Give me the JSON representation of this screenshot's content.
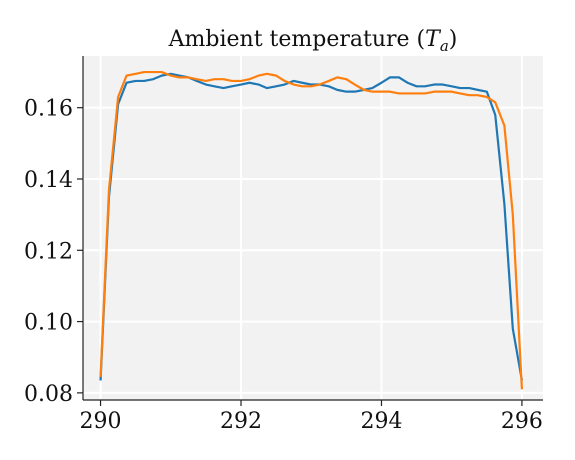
{
  "chart_data": {
    "type": "line",
    "title": "Ambient temperature (Tₐ)",
    "xlabel": "",
    "ylabel": "",
    "xlim": [
      289.75,
      296.3
    ],
    "ylim": [
      0.078,
      0.1745
    ],
    "xticks": [
      290,
      292,
      294,
      296
    ],
    "yticks": [
      0.08,
      0.1,
      0.12,
      0.14,
      0.16
    ],
    "ytick_labels": [
      "0.08",
      "0.10",
      "0.12",
      "0.14",
      "0.16"
    ],
    "grid": true,
    "background": "#f2f2f2",
    "series": [
      {
        "color": "#1f77b4",
        "x": [
          290.0,
          290.12,
          290.25,
          290.37,
          290.5,
          290.62,
          290.75,
          290.87,
          291.0,
          291.12,
          291.25,
          291.37,
          291.5,
          291.62,
          291.75,
          291.87,
          292.0,
          292.12,
          292.25,
          292.37,
          292.5,
          292.62,
          292.75,
          292.87,
          293.0,
          293.12,
          293.25,
          293.37,
          293.5,
          293.62,
          293.75,
          293.87,
          294.0,
          294.12,
          294.25,
          294.37,
          294.5,
          294.62,
          294.75,
          294.87,
          295.0,
          295.12,
          295.25,
          295.37,
          295.5,
          295.62,
          295.75,
          295.87,
          296.0
        ],
        "y": [
          0.0835,
          0.135,
          0.161,
          0.167,
          0.1675,
          0.1675,
          0.168,
          0.169,
          0.1695,
          0.169,
          0.1685,
          0.1675,
          0.1665,
          0.166,
          0.1655,
          0.166,
          0.1665,
          0.167,
          0.1665,
          0.1655,
          0.166,
          0.1665,
          0.1675,
          0.167,
          0.1665,
          0.1665,
          0.166,
          0.165,
          0.1645,
          0.1645,
          0.165,
          0.1655,
          0.167,
          0.1685,
          0.1685,
          0.167,
          0.166,
          0.166,
          0.1665,
          0.1665,
          0.166,
          0.1655,
          0.1655,
          0.165,
          0.1645,
          0.158,
          0.133,
          0.098,
          0.0835
        ]
      },
      {
        "color": "#ff7f0e",
        "x": [
          290.0,
          290.12,
          290.25,
          290.37,
          290.5,
          290.62,
          290.75,
          290.87,
          291.0,
          291.12,
          291.25,
          291.37,
          291.5,
          291.62,
          291.75,
          291.87,
          292.0,
          292.12,
          292.25,
          292.37,
          292.5,
          292.62,
          292.75,
          292.87,
          293.0,
          293.12,
          293.25,
          293.37,
          293.5,
          293.62,
          293.75,
          293.87,
          294.0,
          294.12,
          294.25,
          294.37,
          294.5,
          294.62,
          294.75,
          294.87,
          295.0,
          295.12,
          295.25,
          295.37,
          295.5,
          295.62,
          295.75,
          295.87,
          296.0
        ],
        "y": [
          0.0845,
          0.137,
          0.163,
          0.169,
          0.1695,
          0.17,
          0.17,
          0.17,
          0.169,
          0.1685,
          0.1685,
          0.168,
          0.1675,
          0.168,
          0.168,
          0.1675,
          0.1675,
          0.168,
          0.169,
          0.1695,
          0.169,
          0.1675,
          0.1665,
          0.166,
          0.166,
          0.1665,
          0.1675,
          0.1685,
          0.168,
          0.1665,
          0.165,
          0.1645,
          0.1645,
          0.1645,
          0.164,
          0.164,
          0.164,
          0.164,
          0.1645,
          0.1645,
          0.1645,
          0.164,
          0.1635,
          0.1635,
          0.163,
          0.1615,
          0.155,
          0.13,
          0.081
        ]
      }
    ]
  }
}
